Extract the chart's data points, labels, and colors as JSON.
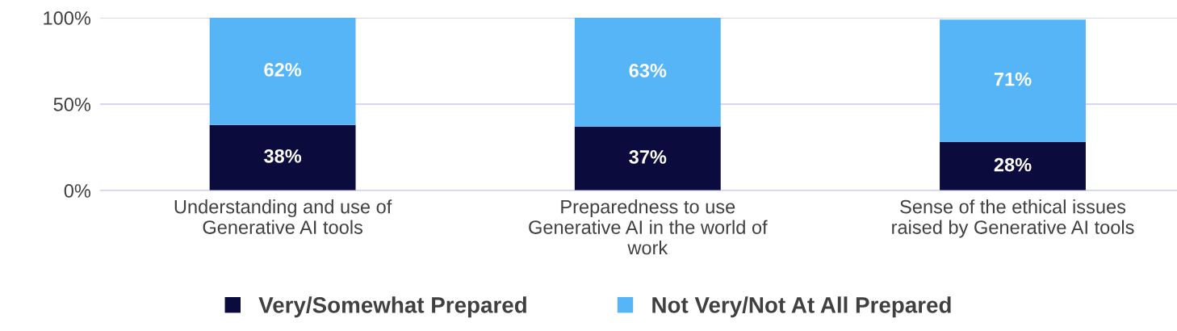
{
  "chart_data": {
    "type": "bar",
    "stacked": true,
    "categories": [
      "Understanding and use of\nGenerative AI tools",
      "Preparedness to use\nGenerative AI in the world of\nwork",
      "Sense of the ethical issues\nraised by Generative AI tools"
    ],
    "series": [
      {
        "name": "Very/Somewhat Prepared",
        "color": "#0b0c3d",
        "values": [
          38,
          37,
          28
        ],
        "value_labels": [
          "38%",
          "37%",
          "28%"
        ]
      },
      {
        "name": "Not Very/Not At All Prepared",
        "color": "#56b5f6",
        "values": [
          62,
          63,
          71
        ],
        "value_labels": [
          "62%",
          "63%",
          "71%"
        ]
      }
    ],
    "ylim": [
      0,
      100
    ],
    "yticks": [
      {
        "value": 0,
        "label": "0%"
      },
      {
        "value": 50,
        "label": "50%"
      },
      {
        "value": 100,
        "label": "100%"
      }
    ],
    "grid": "y",
    "legend": "bottom"
  }
}
